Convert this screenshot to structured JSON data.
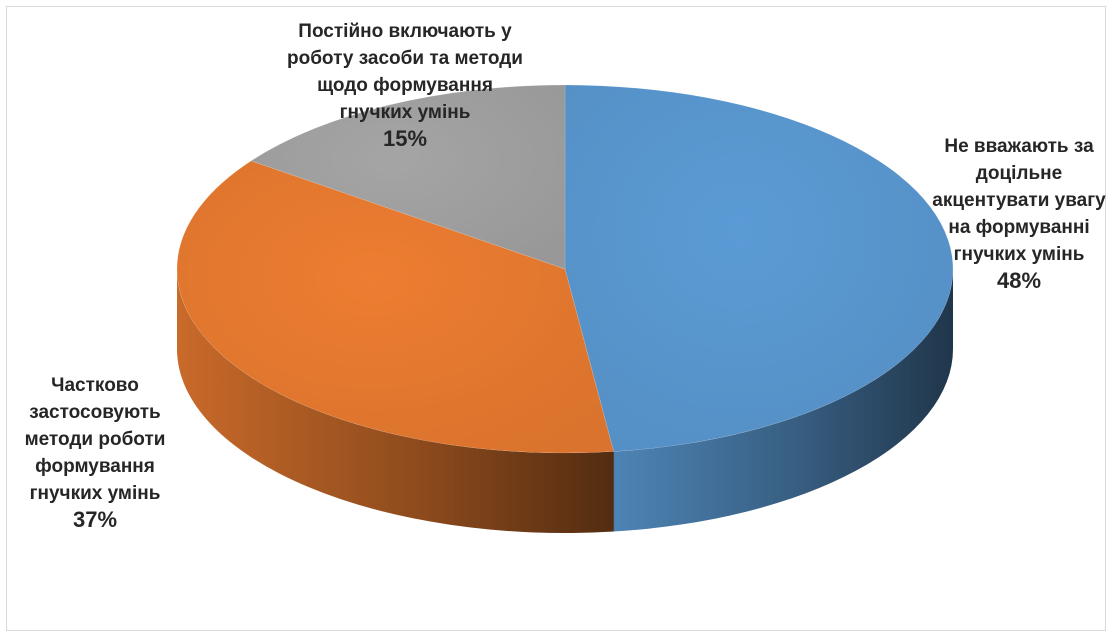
{
  "chart_data": {
    "type": "pie",
    "style": "3d",
    "title": "",
    "legend": "none",
    "slices": [
      {
        "label": "Не вважають за доцільне акцентувати увагу на формуванні гнучких умінь",
        "label_lines": [
          "Не вважають за",
          "доцільне",
          "акцентувати увагу",
          "на формуванні",
          "гнучких умінь"
        ],
        "value": 48,
        "percent_label": "48%",
        "color": "#5b9bd5"
      },
      {
        "label": "Частково застосовують методи роботи формування гнучких умінь",
        "label_lines": [
          "Частково",
          "застосовують",
          "методи роботи",
          "формування",
          "гнучких умінь"
        ],
        "value": 37,
        "percent_label": "37%",
        "color": "#ed7d31"
      },
      {
        "label": "Постійно включають у роботу засоби та методи щодо формування гнучких умінь",
        "label_lines": [
          "Постійно включають у",
          "роботу засоби та методи",
          "щодо формування",
          "гнучких умінь"
        ],
        "value": 15,
        "percent_label": "15%",
        "color": "#a5a5a5"
      }
    ]
  }
}
